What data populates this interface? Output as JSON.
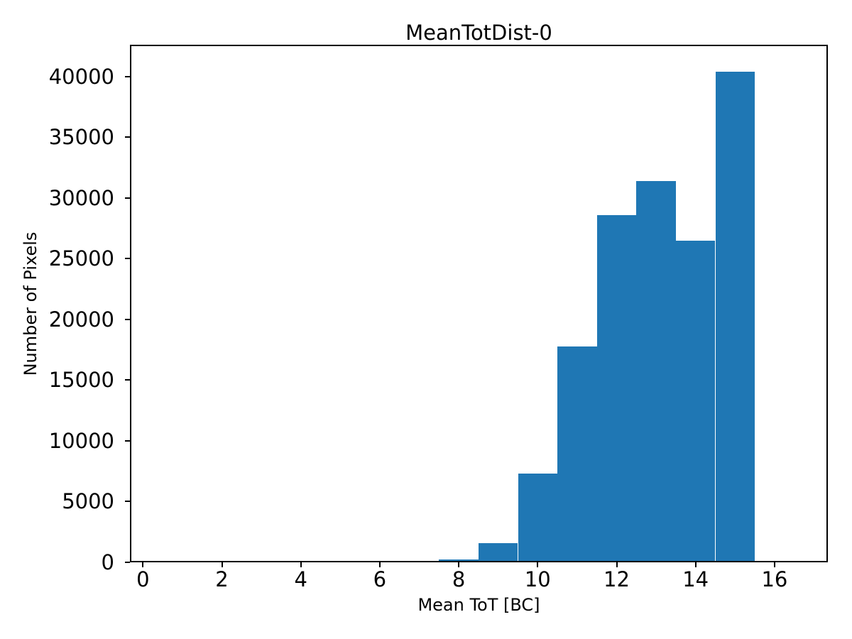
{
  "chart_data": {
    "type": "bar",
    "subtype": "histogram",
    "title": "MeanTotDist-0",
    "xlabel": "Mean ToT [BC]",
    "ylabel": "Number of Pixels",
    "bin_edges": [
      7.5,
      8.5,
      9.5,
      10.5,
      11.5,
      12.5,
      13.5,
      14.5,
      15.5
    ],
    "counts": [
      250,
      1600,
      7300,
      17750,
      28600,
      31400,
      26500,
      40400
    ],
    "bar_color": "#1f77b4",
    "text_color": "#000000",
    "background_color": "#ffffff",
    "xlim": [
      -0.33,
      17.35
    ],
    "ylim": [
      0,
      42600
    ],
    "xticks": [
      0,
      2,
      4,
      6,
      8,
      10,
      12,
      14,
      16
    ],
    "yticks": [
      0,
      5000,
      10000,
      15000,
      20000,
      25000,
      30000,
      35000,
      40000
    ],
    "grid": false,
    "legend_position": "none"
  }
}
